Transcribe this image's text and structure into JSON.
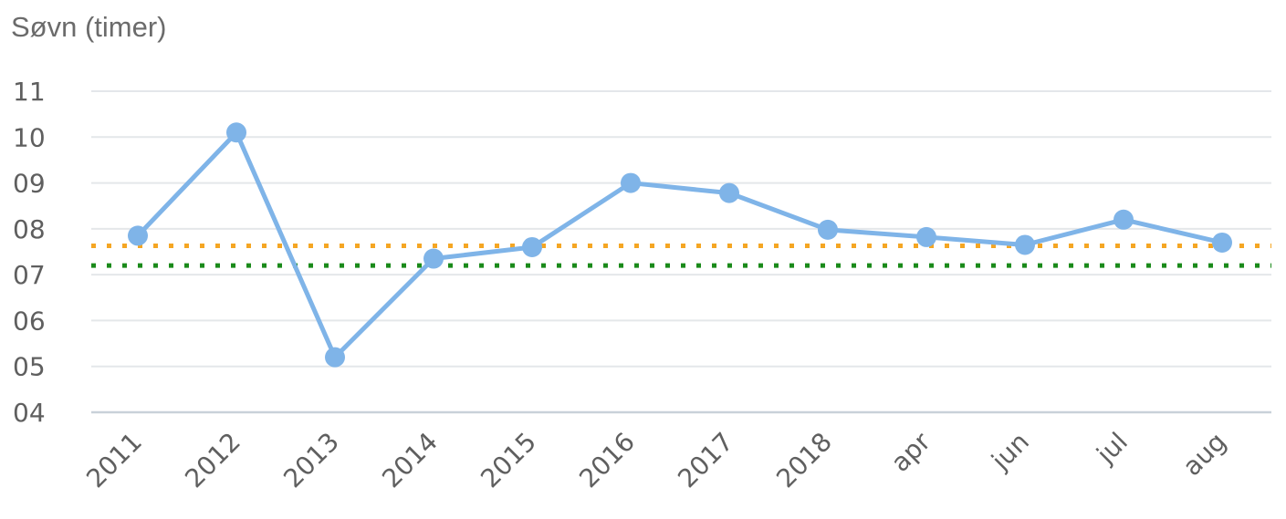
{
  "chart_data": {
    "type": "line",
    "title": "Søvn (timer)",
    "categories": [
      "2011",
      "2012",
      "2013",
      "2014",
      "2015",
      "2016",
      "2017",
      "2018",
      "apr",
      "jun",
      "jul",
      "aug"
    ],
    "series": [
      {
        "values": [
          7.85,
          10.1,
          5.2,
          7.35,
          7.6,
          9.0,
          8.78,
          7.98,
          7.82,
          7.65,
          8.2,
          7.7
        ],
        "color": "#7fb4e8"
      }
    ],
    "reference_lines": [
      {
        "value": 7.63,
        "color": "#f5a623",
        "style": "dotted"
      },
      {
        "value": 7.2,
        "color": "#1a8a1a",
        "style": "dotted"
      }
    ],
    "y_tick_labels": [
      "04",
      "05",
      "06",
      "07",
      "08",
      "09",
      "10",
      "11"
    ],
    "ylim": [
      4,
      11
    ],
    "grid": true,
    "xlabel": "",
    "ylabel": ""
  }
}
